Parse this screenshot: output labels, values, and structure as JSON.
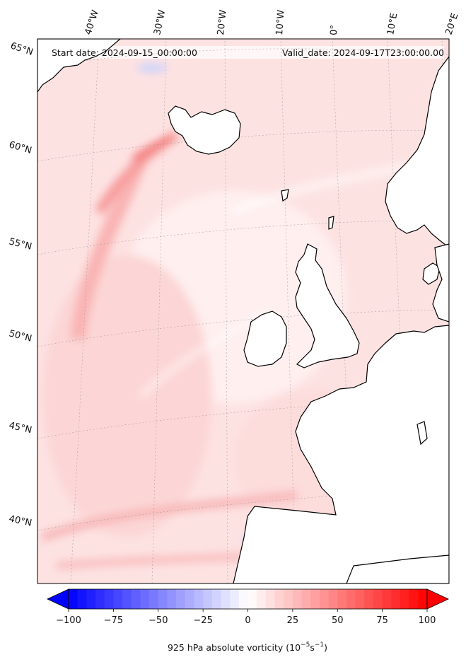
{
  "header": {
    "start_date": "Start date: 2024-09-15_00:00:00",
    "valid_date": "Valid_date: 2024-09-17T23:00:00.00"
  },
  "longitude_labels": [
    "40°W",
    "30°W",
    "20°W",
    "10°W",
    "0°",
    "10°E",
    "20°E"
  ],
  "latitude_labels": [
    "65°N",
    "60°N",
    "55°N",
    "50°N",
    "45°N",
    "40°N"
  ],
  "colorbar": {
    "ticks": [
      "−100",
      "−75",
      "−50",
      "−25",
      "0",
      "25",
      "50",
      "75",
      "100"
    ],
    "title_main": "925 hPa absolute vorticity (10",
    "title_exp1": "−5",
    "title_mid": "s",
    "title_exp2": "−1",
    "title_end": ")",
    "range": [
      -100,
      100
    ],
    "colors": {
      "min": "#0000ff",
      "mid": "#ffffff",
      "max": "#ff0000"
    }
  }
}
